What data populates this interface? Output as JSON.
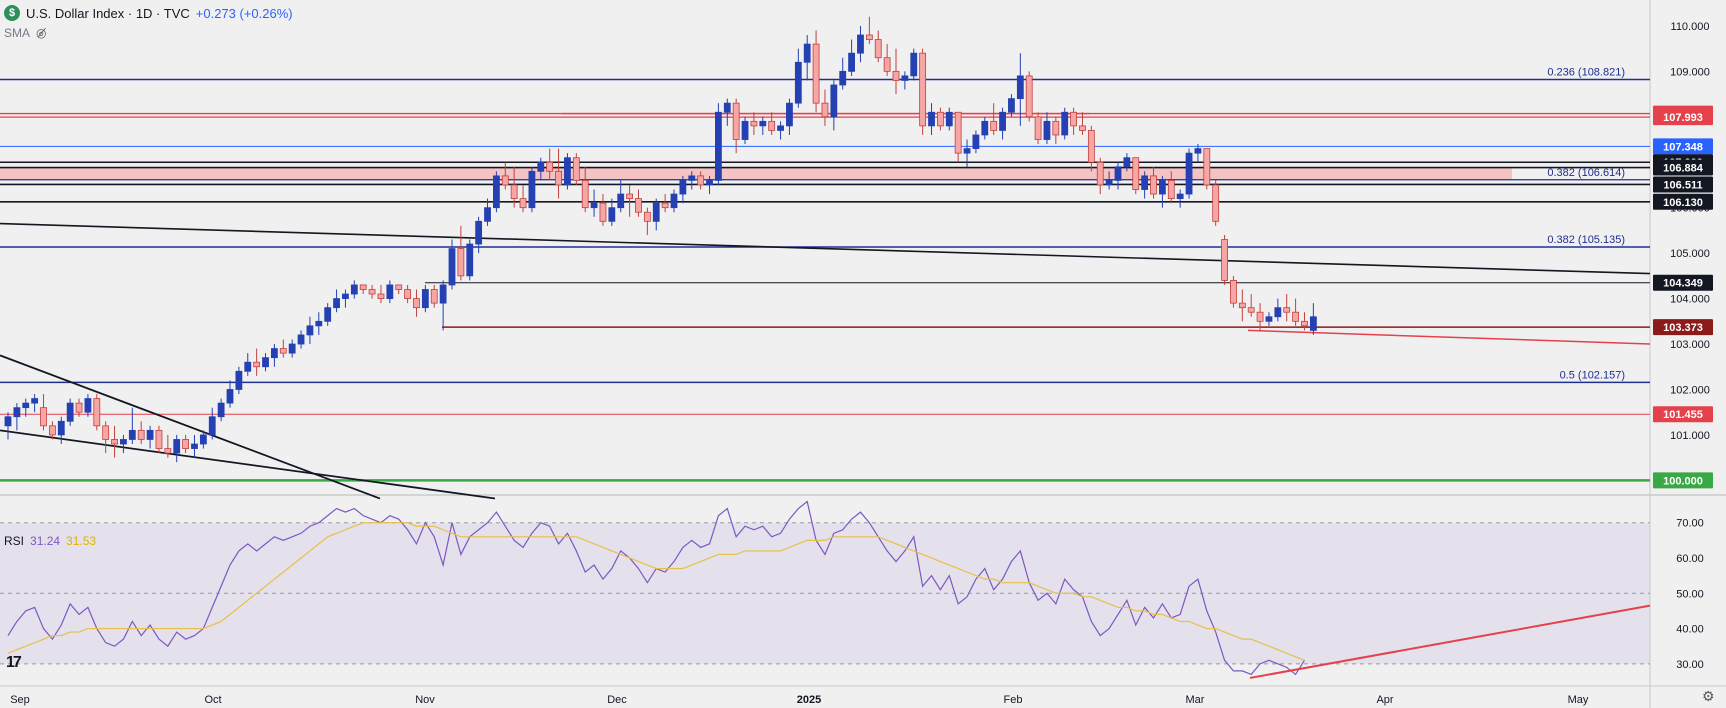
{
  "header": {
    "logo_letter": "$",
    "title": "U.S. Dollar Index · 1D · TVC",
    "change": "+0.273 (+0.26%)",
    "sma_label": "SMA",
    "tv_logo": "17"
  },
  "colors": {
    "bull": "#2440b3",
    "bear": "#f7a6a6",
    "bear_edge": "#c2403c",
    "fib": "#1f2f8f",
    "red_level": "#e5414c",
    "dark_red_level": "#8b1a1a",
    "green_level": "#3aa845",
    "rsi_line": "#7e57c2",
    "rsi_ma": "#e6c04a"
  },
  "chart_data": [
    {
      "type": "candlestick",
      "title": "",
      "x_ticks": [
        "Sep",
        "Oct",
        "Nov",
        "Dec",
        "2025",
        "Feb",
        "Mar",
        "Apr",
        "May"
      ],
      "y_ticks": [
        "110.000",
        "109.000",
        "108.000",
        "107.000",
        "106.000",
        "105.000",
        "104.000",
        "103.000",
        "102.000",
        "101.000",
        "100.000"
      ],
      "ylim": [
        99.7,
        110.35
      ],
      "ohlc": [
        [
          101.2,
          101.5,
          100.9,
          101.4
        ],
        [
          101.4,
          101.7,
          101.1,
          101.6
        ],
        [
          101.6,
          101.8,
          101.4,
          101.7
        ],
        [
          101.7,
          101.9,
          101.5,
          101.8
        ],
        [
          101.6,
          101.9,
          101.1,
          101.2
        ],
        [
          101.2,
          101.3,
          100.9,
          101.0
        ],
        [
          101.0,
          101.4,
          100.8,
          101.3
        ],
        [
          101.3,
          101.8,
          101.2,
          101.7
        ],
        [
          101.7,
          101.8,
          101.4,
          101.5
        ],
        [
          101.5,
          101.9,
          101.4,
          101.8
        ],
        [
          101.8,
          101.9,
          101.1,
          101.2
        ],
        [
          101.2,
          101.3,
          100.6,
          100.9
        ],
        [
          100.9,
          101.2,
          100.5,
          100.8
        ],
        [
          100.8,
          101.0,
          100.6,
          100.9
        ],
        [
          100.9,
          101.6,
          100.8,
          101.1
        ],
        [
          101.1,
          101.3,
          100.8,
          100.9
        ],
        [
          100.9,
          101.2,
          100.7,
          101.1
        ],
        [
          101.1,
          101.2,
          100.6,
          100.7
        ],
        [
          100.7,
          101.0,
          100.5,
          100.6
        ],
        [
          100.6,
          101.0,
          100.4,
          100.9
        ],
        [
          100.9,
          101.0,
          100.6,
          100.7
        ],
        [
          100.7,
          101.0,
          100.5,
          100.8
        ],
        [
          100.8,
          101.1,
          100.7,
          101.0
        ],
        [
          101.0,
          101.6,
          100.9,
          101.4
        ],
        [
          101.4,
          101.8,
          101.3,
          101.7
        ],
        [
          101.7,
          102.2,
          101.6,
          102.0
        ],
        [
          102.0,
          102.5,
          101.9,
          102.4
        ],
        [
          102.4,
          102.8,
          102.3,
          102.6
        ],
        [
          102.6,
          102.9,
          102.3,
          102.5
        ],
        [
          102.5,
          102.8,
          102.4,
          102.7
        ],
        [
          102.7,
          103.0,
          102.5,
          102.9
        ],
        [
          102.9,
          103.1,
          102.7,
          102.8
        ],
        [
          102.8,
          103.1,
          102.7,
          103.0
        ],
        [
          103.0,
          103.3,
          102.9,
          103.2
        ],
        [
          103.2,
          103.6,
          103.0,
          103.4
        ],
        [
          103.4,
          103.7,
          103.2,
          103.5
        ],
        [
          103.5,
          103.9,
          103.4,
          103.8
        ],
        [
          103.8,
          104.2,
          103.7,
          104.0
        ],
        [
          104.0,
          104.2,
          103.8,
          104.1
        ],
        [
          104.1,
          104.4,
          104.0,
          104.3
        ],
        [
          104.3,
          104.3,
          104.1,
          104.2
        ],
        [
          104.2,
          104.3,
          104.0,
          104.1
        ],
        [
          104.1,
          104.3,
          103.9,
          104.0
        ],
        [
          104.0,
          104.4,
          103.9,
          104.3
        ],
        [
          104.3,
          104.3,
          104.1,
          104.2
        ],
        [
          104.2,
          104.3,
          103.9,
          104.0
        ],
        [
          104.0,
          104.2,
          103.6,
          103.8
        ],
        [
          103.8,
          104.3,
          103.7,
          104.2
        ],
        [
          104.2,
          104.3,
          103.8,
          103.9
        ],
        [
          103.9,
          104.4,
          103.3,
          104.3
        ],
        [
          104.3,
          105.3,
          104.2,
          105.1
        ],
        [
          105.1,
          105.6,
          104.4,
          104.5
        ],
        [
          104.5,
          105.3,
          104.4,
          105.2
        ],
        [
          105.2,
          105.8,
          105.0,
          105.7
        ],
        [
          105.7,
          106.2,
          105.6,
          106.0
        ],
        [
          106.0,
          106.8,
          105.9,
          106.7
        ],
        [
          106.7,
          107.0,
          106.4,
          106.5
        ],
        [
          106.5,
          106.9,
          106.0,
          106.2
        ],
        [
          106.2,
          106.5,
          105.9,
          106.0
        ],
        [
          106.0,
          106.9,
          105.9,
          106.8
        ],
        [
          106.8,
          107.1,
          106.6,
          107.0
        ],
        [
          107.0,
          107.3,
          106.6,
          106.8
        ],
        [
          106.8,
          107.3,
          106.2,
          106.5
        ],
        [
          106.5,
          107.2,
          106.4,
          107.1
        ],
        [
          107.1,
          107.2,
          106.5,
          106.6
        ],
        [
          106.6,
          106.9,
          105.9,
          106.0
        ],
        [
          106.0,
          106.4,
          105.8,
          106.1
        ],
        [
          106.1,
          106.3,
          105.6,
          105.7
        ],
        [
          105.7,
          106.2,
          105.6,
          106.0
        ],
        [
          106.0,
          106.6,
          105.9,
          106.3
        ],
        [
          106.3,
          106.5,
          105.8,
          106.2
        ],
        [
          106.2,
          106.4,
          105.8,
          105.9
        ],
        [
          105.9,
          106.0,
          105.4,
          105.7
        ],
        [
          105.7,
          106.2,
          105.5,
          106.1
        ],
        [
          106.1,
          106.3,
          105.9,
          106.0
        ],
        [
          106.0,
          106.4,
          105.9,
          106.3
        ],
        [
          106.3,
          106.7,
          106.1,
          106.6
        ],
        [
          106.6,
          106.8,
          106.4,
          106.7
        ],
        [
          106.7,
          106.8,
          106.4,
          106.5
        ],
        [
          106.5,
          106.7,
          106.3,
          106.6
        ],
        [
          106.6,
          108.3,
          106.5,
          108.1
        ],
        [
          108.1,
          108.4,
          107.8,
          108.3
        ],
        [
          108.3,
          108.4,
          107.2,
          107.5
        ],
        [
          107.5,
          108.0,
          107.4,
          107.9
        ],
        [
          107.9,
          108.1,
          107.6,
          107.8
        ],
        [
          107.8,
          108.0,
          107.6,
          107.9
        ],
        [
          107.9,
          108.1,
          107.6,
          107.7
        ],
        [
          107.7,
          107.9,
          107.5,
          107.8
        ],
        [
          107.8,
          108.4,
          107.6,
          108.3
        ],
        [
          108.3,
          109.5,
          108.2,
          109.2
        ],
        [
          109.2,
          109.8,
          108.8,
          109.6
        ],
        [
          109.6,
          109.9,
          108.1,
          108.3
        ],
        [
          108.3,
          108.6,
          107.8,
          108.0
        ],
        [
          108.0,
          108.8,
          107.7,
          108.7
        ],
        [
          108.7,
          109.3,
          108.6,
          109.0
        ],
        [
          109.0,
          109.7,
          108.9,
          109.4
        ],
        [
          109.4,
          110.0,
          109.2,
          109.8
        ],
        [
          109.8,
          110.2,
          109.6,
          109.7
        ],
        [
          109.7,
          109.9,
          109.2,
          109.3
        ],
        [
          109.3,
          109.6,
          108.9,
          109.0
        ],
        [
          109.0,
          109.5,
          108.5,
          108.8
        ],
        [
          108.8,
          109.0,
          108.6,
          108.9
        ],
        [
          108.9,
          109.5,
          108.8,
          109.4
        ],
        [
          109.4,
          109.5,
          107.6,
          107.8
        ],
        [
          107.8,
          108.3,
          107.6,
          108.1
        ],
        [
          108.1,
          108.2,
          107.7,
          107.8
        ],
        [
          107.8,
          108.2,
          107.7,
          108.1
        ],
        [
          108.1,
          108.1,
          107.0,
          107.2
        ],
        [
          107.2,
          107.5,
          106.9,
          107.3
        ],
        [
          107.3,
          107.7,
          107.2,
          107.6
        ],
        [
          107.6,
          108.0,
          107.5,
          107.9
        ],
        [
          107.9,
          108.3,
          107.6,
          107.7
        ],
        [
          107.7,
          108.2,
          107.5,
          108.1
        ],
        [
          108.1,
          108.5,
          108.0,
          108.4
        ],
        [
          108.4,
          109.4,
          107.8,
          108.9
        ],
        [
          108.9,
          109.0,
          107.9,
          108.0
        ],
        [
          108.0,
          108.1,
          107.4,
          107.5
        ],
        [
          107.5,
          108.1,
          107.4,
          107.9
        ],
        [
          107.9,
          108.0,
          107.4,
          107.6
        ],
        [
          107.6,
          108.2,
          107.5,
          108.1
        ],
        [
          108.1,
          108.2,
          107.6,
          107.8
        ],
        [
          107.8,
          108.1,
          107.6,
          107.7
        ],
        [
          107.7,
          107.8,
          106.8,
          107.0
        ],
        [
          107.0,
          107.1,
          106.3,
          106.5
        ],
        [
          106.5,
          106.8,
          106.4,
          106.6
        ],
        [
          106.6,
          107.0,
          106.4,
          106.9
        ],
        [
          106.9,
          107.2,
          106.8,
          107.1
        ],
        [
          107.1,
          107.1,
          106.3,
          106.4
        ],
        [
          106.4,
          106.8,
          106.2,
          106.7
        ],
        [
          106.7,
          106.9,
          106.2,
          106.3
        ],
        [
          106.3,
          106.7,
          106.0,
          106.6
        ],
        [
          106.6,
          106.8,
          106.1,
          106.2
        ],
        [
          106.2,
          106.4,
          106.0,
          106.3
        ],
        [
          106.3,
          107.3,
          106.2,
          107.2
        ],
        [
          107.2,
          107.4,
          107.0,
          107.3
        ],
        [
          107.3,
          107.3,
          106.4,
          106.5
        ],
        [
          106.5,
          106.6,
          105.6,
          105.7
        ],
        [
          105.3,
          105.4,
          104.3,
          104.4
        ],
        [
          104.4,
          104.5,
          103.8,
          103.9
        ],
        [
          103.9,
          104.2,
          103.5,
          103.8
        ],
        [
          103.8,
          104.1,
          103.6,
          103.7
        ],
        [
          103.7,
          103.9,
          103.3,
          103.5
        ],
        [
          103.5,
          103.7,
          103.4,
          103.6
        ],
        [
          103.6,
          104.0,
          103.5,
          103.8
        ],
        [
          103.8,
          104.1,
          103.5,
          103.7
        ],
        [
          103.7,
          104.0,
          103.4,
          103.5
        ],
        [
          103.5,
          103.7,
          103.3,
          103.4
        ],
        [
          103.3,
          103.9,
          103.2,
          103.6
        ]
      ],
      "levels": [
        {
          "value": 108.821,
          "label": "0.236 (108.821)",
          "kind": "fib"
        },
        {
          "value": 106.614,
          "label": "0.382 (106.614)",
          "kind": "fib"
        },
        {
          "value": 105.135,
          "label": "0.382 (105.135)",
          "kind": "fib"
        },
        {
          "value": 102.157,
          "label": "0.5 (102.157)",
          "kind": "fib"
        }
      ],
      "price_labels": [
        {
          "value": 108.071,
          "text": "108.071",
          "bg": "#e5414c",
          "fg": "#ffffff"
        },
        {
          "value": 107.993,
          "text": "107.993",
          "bg": "#e5414c",
          "fg": "#ffffff"
        },
        {
          "value": 107.348,
          "text": "107.348",
          "bg": "#2962ff",
          "fg": "#ffffff"
        },
        {
          "value": 107.0,
          "text": "107.000",
          "bg": "#131722",
          "fg": "#ffffff"
        },
        {
          "value": 106.884,
          "text": "106.884",
          "bg": "#131722",
          "fg": "#ffffff"
        },
        {
          "value": 106.511,
          "text": "106.511",
          "bg": "#131722",
          "fg": "#ffffff"
        },
        {
          "value": 106.13,
          "text": "106.130",
          "bg": "#131722",
          "fg": "#ffffff"
        },
        {
          "value": 104.349,
          "text": "104.349",
          "bg": "#131722",
          "fg": "#ffffff"
        },
        {
          "value": 103.373,
          "text": "103.373",
          "bg": "#8b1a1a",
          "fg": "#ffffff"
        },
        {
          "value": 101.455,
          "text": "101.455",
          "bg": "#e5414c",
          "fg": "#ffffff"
        },
        {
          "value": 100.0,
          "text": "100.000",
          "bg": "#3aa845",
          "fg": "#ffffff"
        }
      ]
    },
    {
      "type": "line",
      "title": "RSI",
      "name": "RSI",
      "value_rsi": "31.24",
      "value_ma": "31.53",
      "y_ticks": [
        "70.00",
        "60.00",
        "50.00",
        "40.00",
        "30.00"
      ],
      "ylim": [
        24,
        77
      ],
      "rsi": [
        38,
        42,
        45,
        46,
        40,
        37,
        41,
        47,
        44,
        46,
        40,
        36,
        35,
        37,
        42,
        38,
        41,
        37,
        35,
        39,
        37,
        38,
        40,
        46,
        52,
        58,
        62,
        64,
        62,
        64,
        66,
        65,
        66,
        67,
        69,
        70,
        72,
        74,
        73,
        74,
        72,
        71,
        70,
        72,
        71,
        68,
        64,
        70,
        66,
        58,
        70,
        61,
        66,
        68,
        70,
        73,
        69,
        65,
        63,
        67,
        70,
        69,
        64,
        67,
        62,
        56,
        58,
        54,
        57,
        62,
        60,
        57,
        53,
        57,
        56,
        59,
        63,
        65,
        63,
        64,
        72,
        74,
        66,
        69,
        68,
        69,
        66,
        67,
        71,
        74,
        76,
        65,
        61,
        67,
        68,
        71,
        73,
        70,
        66,
        62,
        59,
        62,
        66,
        52,
        55,
        51,
        55,
        47,
        49,
        54,
        57,
        51,
        54,
        59,
        62,
        53,
        48,
        50,
        47,
        54,
        51,
        49,
        42,
        38,
        40,
        44,
        48,
        41,
        46,
        43,
        47,
        43,
        44,
        52,
        54,
        45,
        39,
        31,
        28,
        28,
        27,
        30,
        31,
        30,
        29,
        27,
        31
      ],
      "rsi_ma": [
        33,
        34,
        35,
        36,
        37,
        38,
        38,
        39,
        39,
        40,
        40,
        40,
        40,
        40,
        40,
        40,
        40,
        40,
        40,
        40,
        40,
        40,
        40,
        41,
        42,
        44,
        46,
        48,
        50,
        52,
        54,
        56,
        58,
        60,
        62,
        64,
        66,
        67,
        68,
        69,
        70,
        70,
        70,
        70,
        70,
        70,
        69,
        69,
        69,
        68,
        67,
        66,
        66,
        66,
        66,
        66,
        66,
        66,
        66,
        66,
        66,
        66,
        66,
        66,
        66,
        65,
        64,
        63,
        62,
        61,
        60,
        59,
        58,
        57,
        57,
        57,
        57,
        58,
        59,
        60,
        61,
        61,
        61,
        62,
        62,
        62,
        62,
        62,
        63,
        64,
        65,
        65,
        65,
        66,
        66,
        66,
        66,
        66,
        66,
        65,
        64,
        63,
        62,
        61,
        60,
        59,
        58,
        57,
        56,
        55,
        54,
        54,
        53,
        53,
        53,
        53,
        52,
        51,
        50,
        50,
        50,
        49,
        49,
        48,
        47,
        46,
        46,
        45,
        45,
        44,
        44,
        43,
        42,
        42,
        41,
        40,
        40,
        39,
        38,
        37,
        37,
        36,
        35,
        34,
        33,
        32,
        31
      ]
    }
  ]
}
